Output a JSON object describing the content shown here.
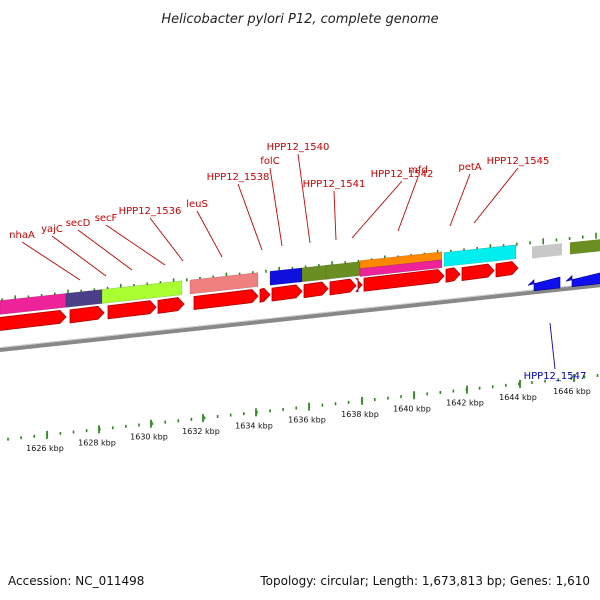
{
  "title": "Helicobacter pylori P12, complete genome",
  "colors": {
    "forward_label": "#cc0000",
    "reverse_label": "#0000bb",
    "tick": "#2e8b22",
    "backbone": "#888888",
    "cds": "#ff0000",
    "cds_edge": "#b00000"
  },
  "scale": {
    "unit": "kbp",
    "major_tick_labels": [
      "1626 kbp",
      "1628 kbp",
      "1630 kbp",
      "1632 kbp",
      "1634 kbp",
      "1636 kbp",
      "1638 kbp",
      "1640 kbp",
      "1642 kbp",
      "1644 kbp",
      "1646 kbp"
    ]
  },
  "genes": [
    {
      "name": "nhaA",
      "strand": "forward"
    },
    {
      "name": "yajC",
      "strand": "forward"
    },
    {
      "name": "secD",
      "strand": "forward"
    },
    {
      "name": "secF",
      "strand": "forward"
    },
    {
      "name": "HPP12_1536",
      "strand": "forward"
    },
    {
      "name": "leuS",
      "strand": "forward"
    },
    {
      "name": "HPP12_1538",
      "strand": "forward"
    },
    {
      "name": "folC",
      "strand": "forward"
    },
    {
      "name": "HPP12_1540",
      "strand": "forward"
    },
    {
      "name": "HPP12_1541",
      "strand": "forward"
    },
    {
      "name": "HPP12_1542",
      "strand": "forward"
    },
    {
      "name": "mfd",
      "strand": "forward"
    },
    {
      "name": "petA",
      "strand": "forward"
    },
    {
      "name": "HPP12_1545",
      "strand": "forward"
    },
    {
      "name": "HPP12_1547",
      "strand": "reverse"
    }
  ],
  "footer": {
    "accession": "Accession: NC_011498",
    "summary": "Topology: circular; Length: 1,673,813 bp; Genes: 1,610"
  }
}
